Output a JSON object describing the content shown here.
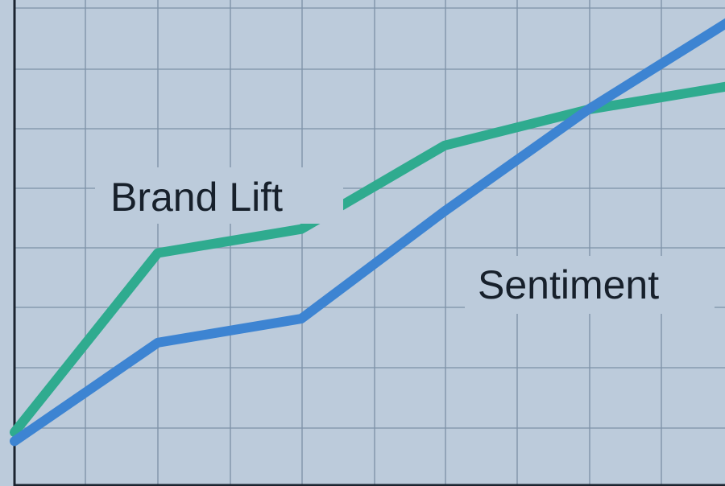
{
  "chart_data": {
    "type": "line",
    "title": "",
    "xlabel": "",
    "ylabel": "",
    "x": [
      0,
      1,
      2,
      3,
      4,
      5
    ],
    "xlim": [
      0,
      5
    ],
    "ylim": [
      0,
      8
    ],
    "grid": true,
    "series": [
      {
        "name": "Brand Lift",
        "color": "#2fab8f",
        "values": [
          0.9,
          3.9,
          4.3,
          5.7,
          6.3,
          6.7
        ]
      },
      {
        "name": "Sentiment",
        "color": "#3d84d2",
        "values": [
          0.75,
          2.4,
          2.8,
          4.6,
          6.3,
          7.8
        ]
      }
    ]
  }
}
